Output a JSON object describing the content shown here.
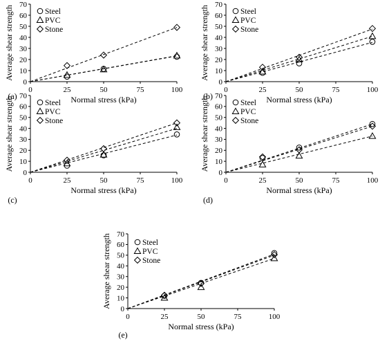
{
  "chart_data": [
    {
      "type": "scatter",
      "panel_label": "(a)",
      "xlabel": "Normal stress (kPa)",
      "ylabel": "Average shear strength",
      "xlim": [
        0,
        100
      ],
      "ylim": [
        0,
        70
      ],
      "xticks": [
        "0",
        "25",
        "50",
        "75",
        "100"
      ],
      "yticks": [
        "0",
        "10",
        "20",
        "30",
        "40",
        "50",
        "60",
        "70"
      ],
      "legend_position": "top-left",
      "x": [
        25,
        50,
        100
      ],
      "series": [
        {
          "name": "Steel",
          "marker": "circle",
          "values": [
            4.5,
            11.5,
            22.5
          ],
          "slope": 0.232
        },
        {
          "name": "PVC",
          "marker": "triangle",
          "values": [
            6,
            11,
            23.5
          ],
          "slope": 0.234
        },
        {
          "name": "Stone",
          "marker": "diamond",
          "values": [
            14.5,
            24,
            49
          ],
          "slope": 0.49
        }
      ]
    },
    {
      "type": "scatter",
      "panel_label": "(b)",
      "xlabel": "Normal stress (kPa)",
      "ylabel": "Average shear strength",
      "xlim": [
        0,
        100
      ],
      "ylim": [
        0,
        70
      ],
      "xticks": [
        "0",
        "25",
        "50",
        "75",
        "100"
      ],
      "yticks": [
        "0",
        "10",
        "20",
        "30",
        "40",
        "50",
        "60",
        "70"
      ],
      "legend_position": "top-left",
      "x": [
        25,
        50,
        100
      ],
      "series": [
        {
          "name": "Steel",
          "marker": "circle",
          "values": [
            8,
            16.5,
            36
          ],
          "slope": 0.355
        },
        {
          "name": "PVC",
          "marker": "triangle",
          "values": [
            9,
            20,
            41
          ],
          "slope": 0.41
        },
        {
          "name": "Stone",
          "marker": "diamond",
          "values": [
            13,
            22,
            48
          ],
          "slope": 0.475
        }
      ]
    },
    {
      "type": "scatter",
      "panel_label": "(c)",
      "xlabel": "Normal stress (kPa)",
      "ylabel": "Average shear strength",
      "xlim": [
        0,
        100
      ],
      "ylim": [
        0,
        70
      ],
      "xticks": [
        "0",
        "25",
        "50",
        "75",
        "100"
      ],
      "yticks": [
        "0",
        "10",
        "20",
        "30",
        "40",
        "50",
        "60",
        "70"
      ],
      "legend_position": "top-left",
      "x": [
        25,
        50,
        100
      ],
      "series": [
        {
          "name": "Steel",
          "marker": "circle",
          "values": [
            6,
            15.5,
            34.5
          ],
          "slope": 0.34
        },
        {
          "name": "PVC",
          "marker": "triangle",
          "values": [
            8,
            16,
            41
          ],
          "slope": 0.4
        },
        {
          "name": "Stone",
          "marker": "diamond",
          "values": [
            11,
            21.5,
            45
          ],
          "slope": 0.45
        }
      ]
    },
    {
      "type": "scatter",
      "panel_label": "(d)",
      "xlabel": "Normal stress (kPa)",
      "ylabel": "Average shear strength",
      "xlim": [
        0,
        100
      ],
      "ylim": [
        0,
        70
      ],
      "xticks": [
        "0",
        "25",
        "50",
        "75",
        "100"
      ],
      "yticks": [
        "0",
        "10",
        "20",
        "30",
        "40",
        "50",
        "60",
        "70"
      ],
      "legend_position": "top-left",
      "x": [
        25,
        50,
        100
      ],
      "series": [
        {
          "name": "Steel",
          "marker": "circle",
          "values": [
            13,
            22.5,
            44
          ],
          "slope": 0.44
        },
        {
          "name": "PVC",
          "marker": "triangle",
          "values": [
            7,
            15,
            33
          ],
          "slope": 0.33
        },
        {
          "name": "Stone",
          "marker": "diamond",
          "values": [
            14,
            20.5,
            42
          ],
          "slope": 0.42
        }
      ]
    },
    {
      "type": "scatter",
      "panel_label": "(e)",
      "xlabel": "Normal stress (kPa)",
      "ylabel": "Average shear strength",
      "xlim": [
        0,
        100
      ],
      "ylim": [
        0,
        70
      ],
      "xticks": [
        "0",
        "25",
        "50",
        "75",
        "100"
      ],
      "yticks": [
        "0",
        "10",
        "20",
        "30",
        "40",
        "50",
        "60",
        "70"
      ],
      "legend_position": "top-left",
      "x": [
        25,
        50,
        100
      ],
      "series": [
        {
          "name": "Steel",
          "marker": "circle",
          "values": [
            12,
            24,
            52
          ],
          "slope": 0.51
        },
        {
          "name": "PVC",
          "marker": "triangle",
          "values": [
            10,
            20,
            47
          ],
          "slope": 0.47
        },
        {
          "name": "Stone",
          "marker": "diamond",
          "values": [
            12.5,
            23.5,
            50.5
          ],
          "slope": 0.5
        }
      ]
    }
  ]
}
